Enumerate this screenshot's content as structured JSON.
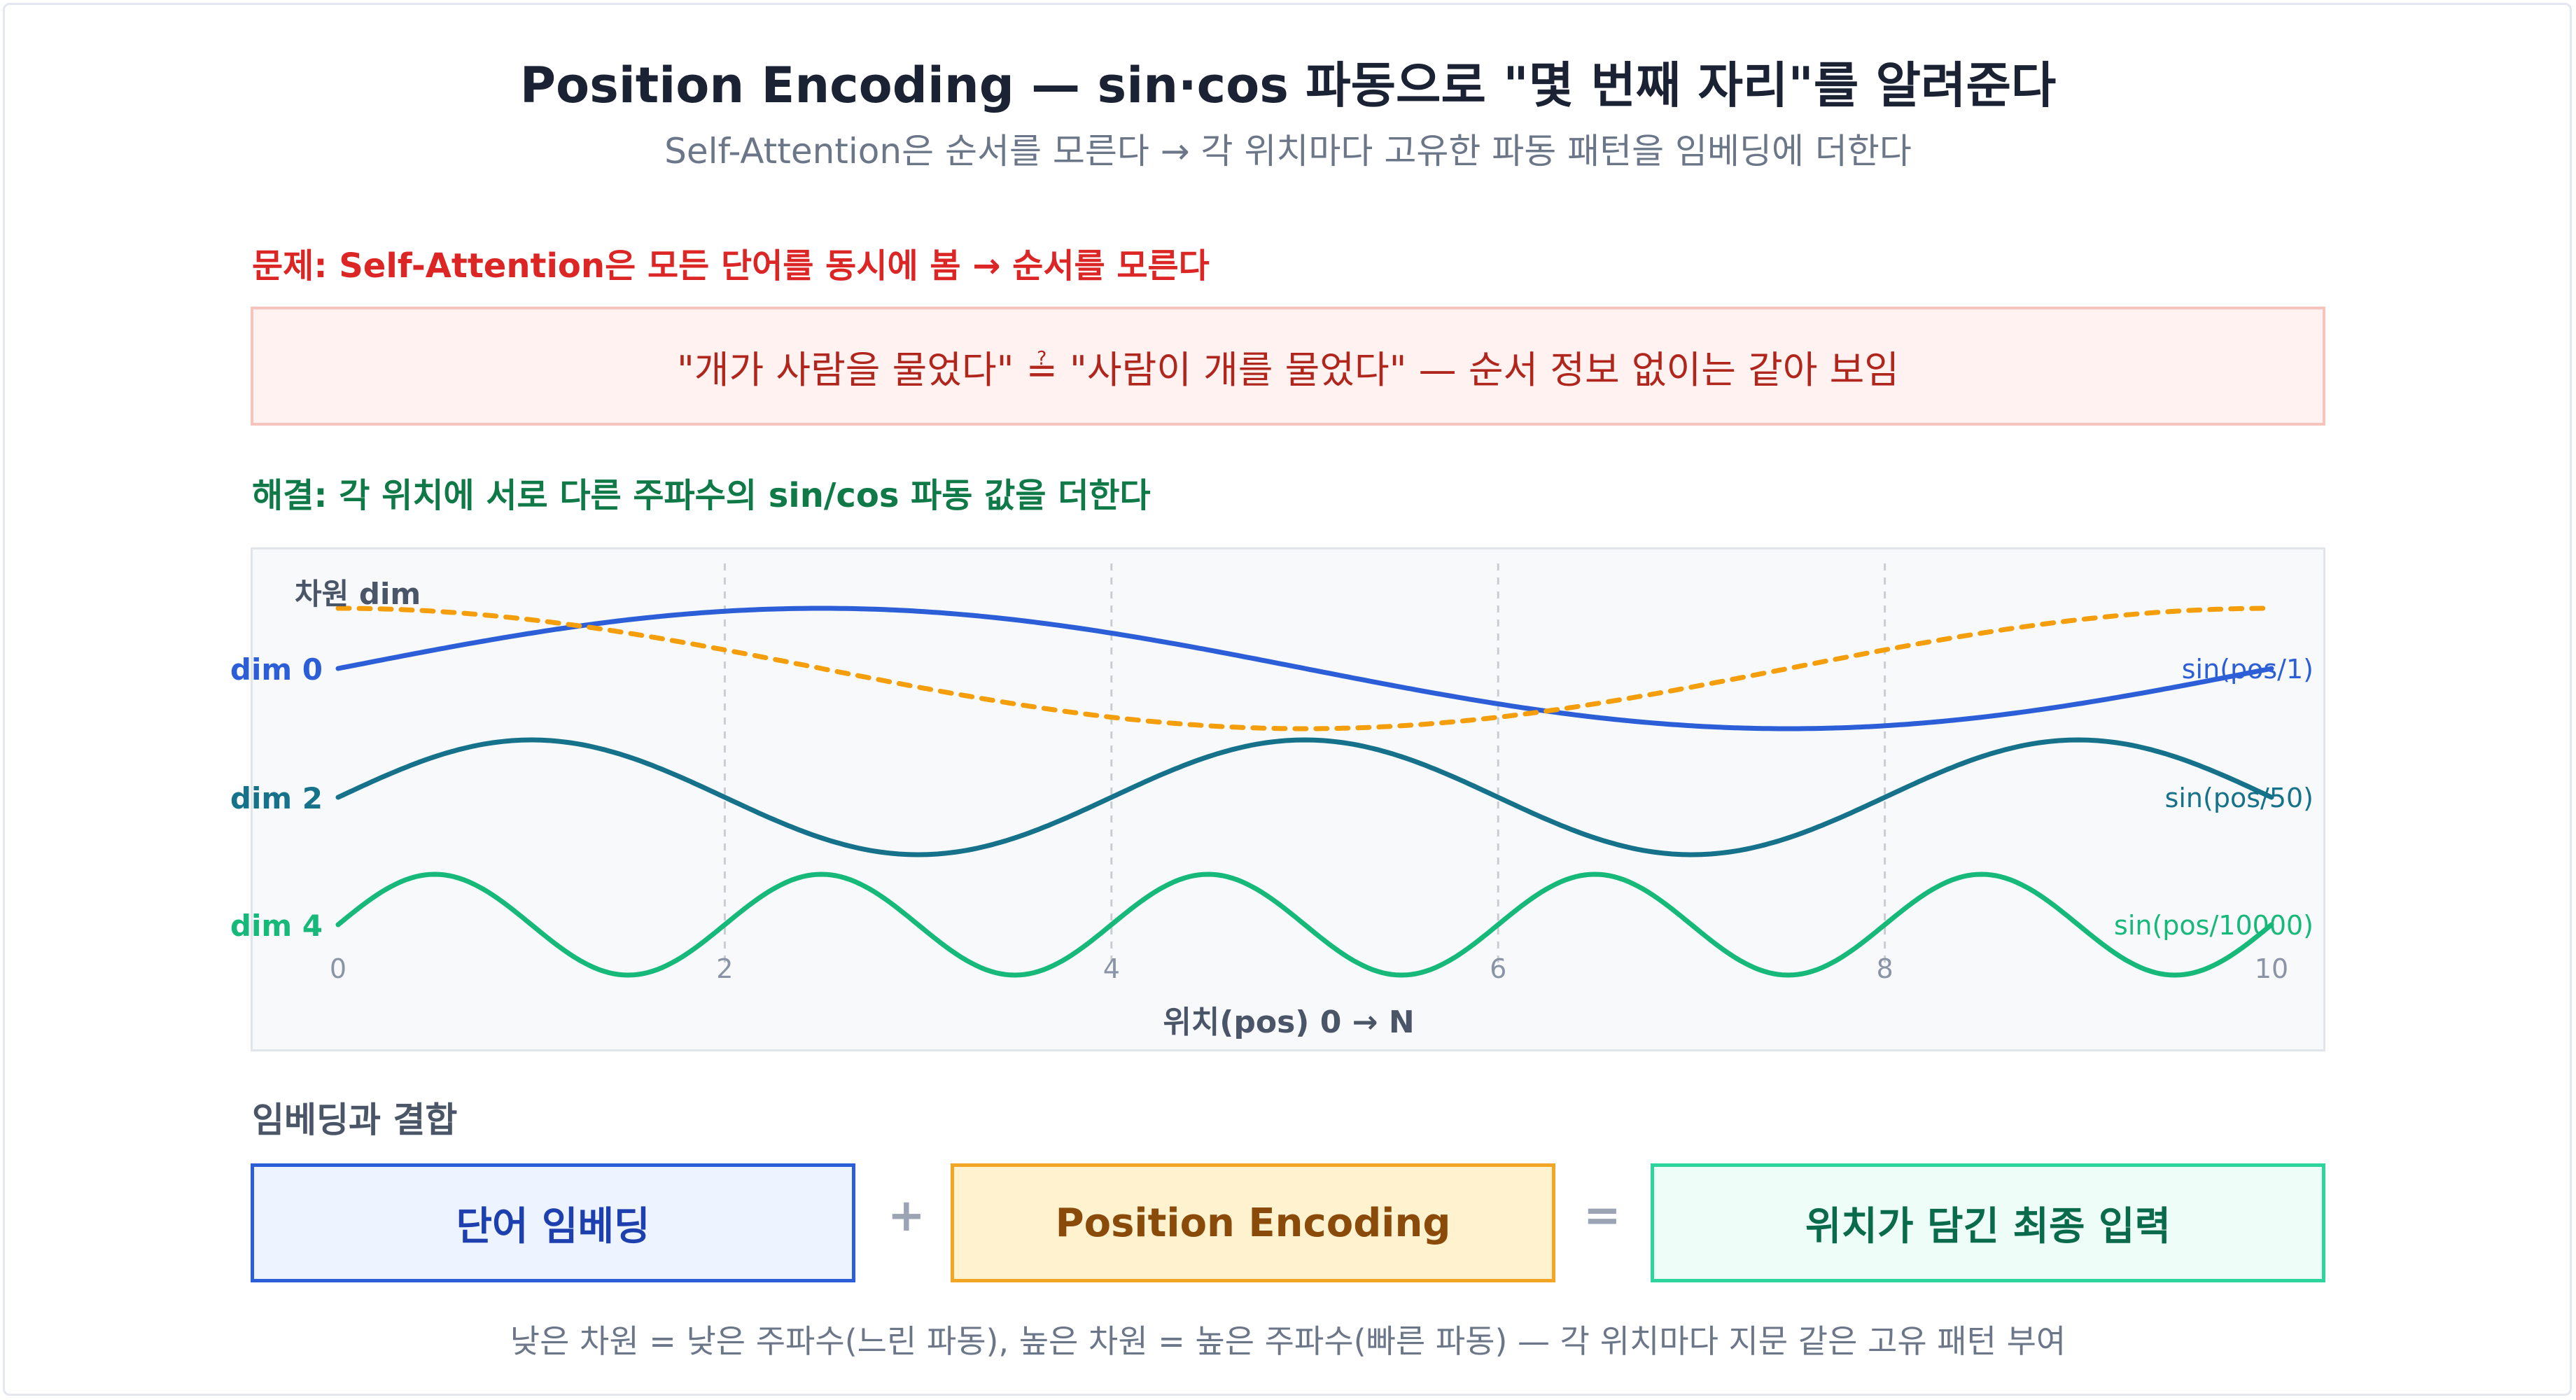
{
  "header": {
    "title": "Position Encoding — sin·cos 파동으로 \"몇 번째 자리\"를 알려준다",
    "subtitle": "Self-Attention은 순서를 모른다 → 각 위치마다 고유한 파동 패턴을 임베딩에 더한다"
  },
  "problem": {
    "label": "문제: Self-Attention은 모든 단어를 동시에 봄 → 순서를 모른다",
    "text": "\"개가 사람을 물었다\" ≟ \"사람이 개를 물었다\" — 순서 정보 없이는 같아 보임"
  },
  "solution": {
    "label": "해결: 각 위치에 서로 다른 주파수의 sin/cos 파동 값을 더한다"
  },
  "chart_data": {
    "type": "line",
    "ylabel": "차원 dim",
    "xlabel": "위치(pos) 0 → N",
    "xlim": [
      0,
      10
    ],
    "xticks": [
      "0",
      "2",
      "4",
      "6",
      "8",
      "10"
    ],
    "grid": "vertical-dashed",
    "series": [
      {
        "name": "dim 0",
        "formula": "sin(pos/1)",
        "color": "#2c5fd7",
        "style": "solid",
        "cycles": 1.0,
        "phase": 0.0,
        "amplitude": 1.0
      },
      {
        "name": "",
        "formula": "",
        "color": "#f59e0b",
        "style": "dashed",
        "cycles": 1.0,
        "phase": 0.25,
        "amplitude": 1.0
      },
      {
        "name": "dim 2",
        "formula": "sin(pos/50)",
        "color": "#15728a",
        "style": "solid",
        "cycles": 2.5,
        "phase": 0.0,
        "amplitude": 1.0
      },
      {
        "name": "dim 4",
        "formula": "sin(pos/10000)",
        "color": "#16b97a",
        "style": "solid",
        "cycles": 5.0,
        "phase": 0.0,
        "amplitude": 1.0
      }
    ]
  },
  "combine": {
    "label": "임베딩과 결합",
    "word_embedding": "단어 임베딩",
    "plus": "+",
    "position_encoding": "Position Encoding",
    "equals": "=",
    "final_input": "위치가 담긴 최종 입력"
  },
  "footer": "낮은 차원 = 낮은 주파수(느린 파동), 높은 차원 = 높은 주파수(빠른 파동) — 각 위치마다 지문 같은 고유 패턴 부여",
  "colors": {
    "problem": "#dc2626",
    "solution": "#0f7a47",
    "word_box": "#2c5fd7",
    "pe_box": "#f3a525",
    "final_box": "#2fd39c"
  }
}
